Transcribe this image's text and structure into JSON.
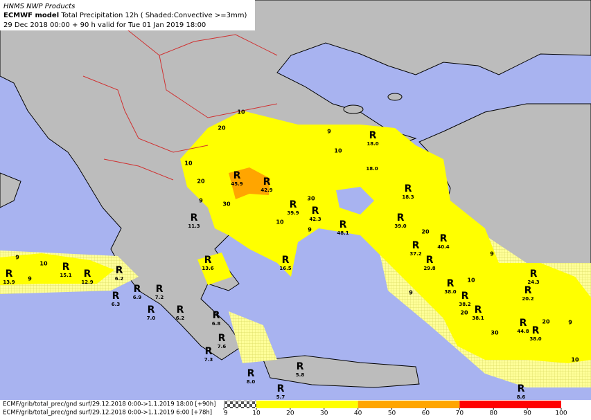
{
  "header": {
    "line1": "HNMS NWP Products",
    "model": "ECMWF model",
    "description": "Total Precipitation 12h ( Shaded:Convective >=3mm)",
    "valid": "29 Dec 2018 00:00 + 90 h valid for Tue 01 Jan 2019 18:00"
  },
  "footer": {
    "lines": [
      "ECMF/grib/total_prec/gnd surf/29.12.2018 0:00->1.1.2019 18:00 [+90h]",
      "ECMF/grib/total_prec/gnd surf/29.12.2018 0:00->1.1.2019 6:00 [+78h]"
    ]
  },
  "colorbar": {
    "ticks": [
      9,
      10,
      20,
      30,
      40,
      50,
      60,
      70,
      80,
      90,
      100
    ],
    "bands": [
      {
        "from": 9,
        "to": 10,
        "hatched": true
      },
      {
        "from": 10,
        "to": 40,
        "color": "#ffff00"
      },
      {
        "from": 40,
        "to": 70,
        "color": "#ffa500"
      },
      {
        "from": 70,
        "to": 100,
        "color": "#ff0000"
      }
    ]
  },
  "markers": [
    {
      "label": "R",
      "value": "18.0"
    },
    {
      "label": "R",
      "value": "45.9"
    },
    {
      "label": "R",
      "value": "42.9"
    },
    {
      "label": "R",
      "value": "18.3"
    },
    {
      "label": "R",
      "value": "11.3"
    },
    {
      "label": "R",
      "value": "39.9"
    },
    {
      "label": "R",
      "value": "42.3"
    },
    {
      "label": "R",
      "value": "48.1"
    },
    {
      "label": "R",
      "value": "39.0"
    },
    {
      "label": "R",
      "value": "37.2"
    },
    {
      "label": "R",
      "value": "40.4"
    },
    {
      "label": "R",
      "value": "29.8"
    },
    {
      "label": "R",
      "value": "13.6"
    },
    {
      "label": "R",
      "value": "16.5"
    },
    {
      "label": "R",
      "value": "15.1"
    },
    {
      "label": "R",
      "value": "12.9"
    },
    {
      "label": "R",
      "value": "13.9"
    },
    {
      "label": "R",
      "value": "6.2"
    },
    {
      "label": "R",
      "value": "6.9"
    },
    {
      "label": "R",
      "value": "7.2"
    },
    {
      "label": "R",
      "value": "6.3"
    },
    {
      "label": "R",
      "value": "7.0"
    },
    {
      "label": "R",
      "value": "6.2"
    },
    {
      "label": "R",
      "value": "6.8"
    },
    {
      "label": "R",
      "value": "7.6"
    },
    {
      "label": "R",
      "value": "7.3"
    },
    {
      "label": "R",
      "value": "8.0"
    },
    {
      "label": "R",
      "value": "5.7"
    },
    {
      "label": "R",
      "value": "5.8"
    },
    {
      "label": "R",
      "value": "38.0"
    },
    {
      "label": "R",
      "value": "38.2"
    },
    {
      "label": "R",
      "value": "38.1"
    },
    {
      "label": "R",
      "value": "44.8"
    },
    {
      "label": "R",
      "value": "38.0"
    },
    {
      "label": "R",
      "value": "24.3"
    },
    {
      "label": "R",
      "value": "20.2"
    },
    {
      "label": "R",
      "value": "8.6"
    }
  ],
  "extra_values": [
    "18.0"
  ],
  "contours": [
    "10",
    "20",
    "9",
    "10",
    "10",
    "20",
    "30",
    "9",
    "30",
    "10",
    "9",
    "10",
    "9",
    "9",
    "20",
    "9",
    "20",
    "30",
    "20",
    "9",
    "10",
    "9",
    "10"
  ]
}
